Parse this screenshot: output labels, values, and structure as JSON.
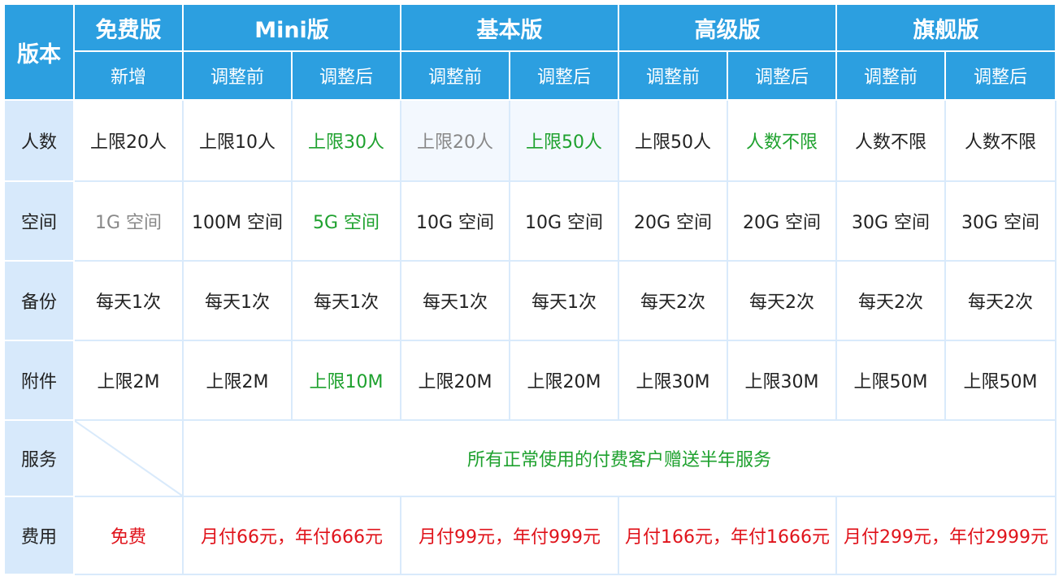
{
  "header": {
    "corner": "版本",
    "editions": [
      "免费版",
      "Mini版",
      "基本版",
      "高级版",
      "旗舰版"
    ],
    "sub": [
      "新增",
      "调整前",
      "调整后",
      "调整前",
      "调整后",
      "调整前",
      "调整后",
      "调整前",
      "调整后"
    ]
  },
  "rows": [
    {
      "label": "人数",
      "cells": [
        "上限20人",
        "上限10人",
        "上限30人",
        "上限20人",
        "上限50人",
        "上限50人",
        "人数不限",
        "人数不限",
        "人数不限"
      ]
    },
    {
      "label": "空间",
      "cells": [
        "1G 空间",
        "100M 空间",
        "5G 空间",
        "10G 空间",
        "10G 空间",
        "20G 空间",
        "20G 空间",
        "30G 空间",
        "30G 空间"
      ]
    },
    {
      "label": "备份",
      "cells": [
        "每天1次",
        "每天1次",
        "每天1次",
        "每天1次",
        "每天1次",
        "每天2次",
        "每天2次",
        "每天2次",
        "每天2次"
      ]
    },
    {
      "label": "附件",
      "cells": [
        "上限2M",
        "上限2M",
        "上限10M",
        "上限20M",
        "上限20M",
        "上限30M",
        "上限30M",
        "上限50M",
        "上限50M"
      ]
    }
  ],
  "service": {
    "label": "服务",
    "text": "所有正常使用的付费客户赠送半年服务"
  },
  "fees": {
    "label": "费用",
    "cells": [
      "免费",
      "月付66元，年付666元",
      "月付99元，年付999元",
      "月付166元，年付1666元",
      "月付299元，年付2999元"
    ]
  },
  "colors": {
    "header": "#2c9fe0",
    "label_bg": "#d7e9fb",
    "highlight": "#1ea12e",
    "fee": "#e0131b"
  }
}
